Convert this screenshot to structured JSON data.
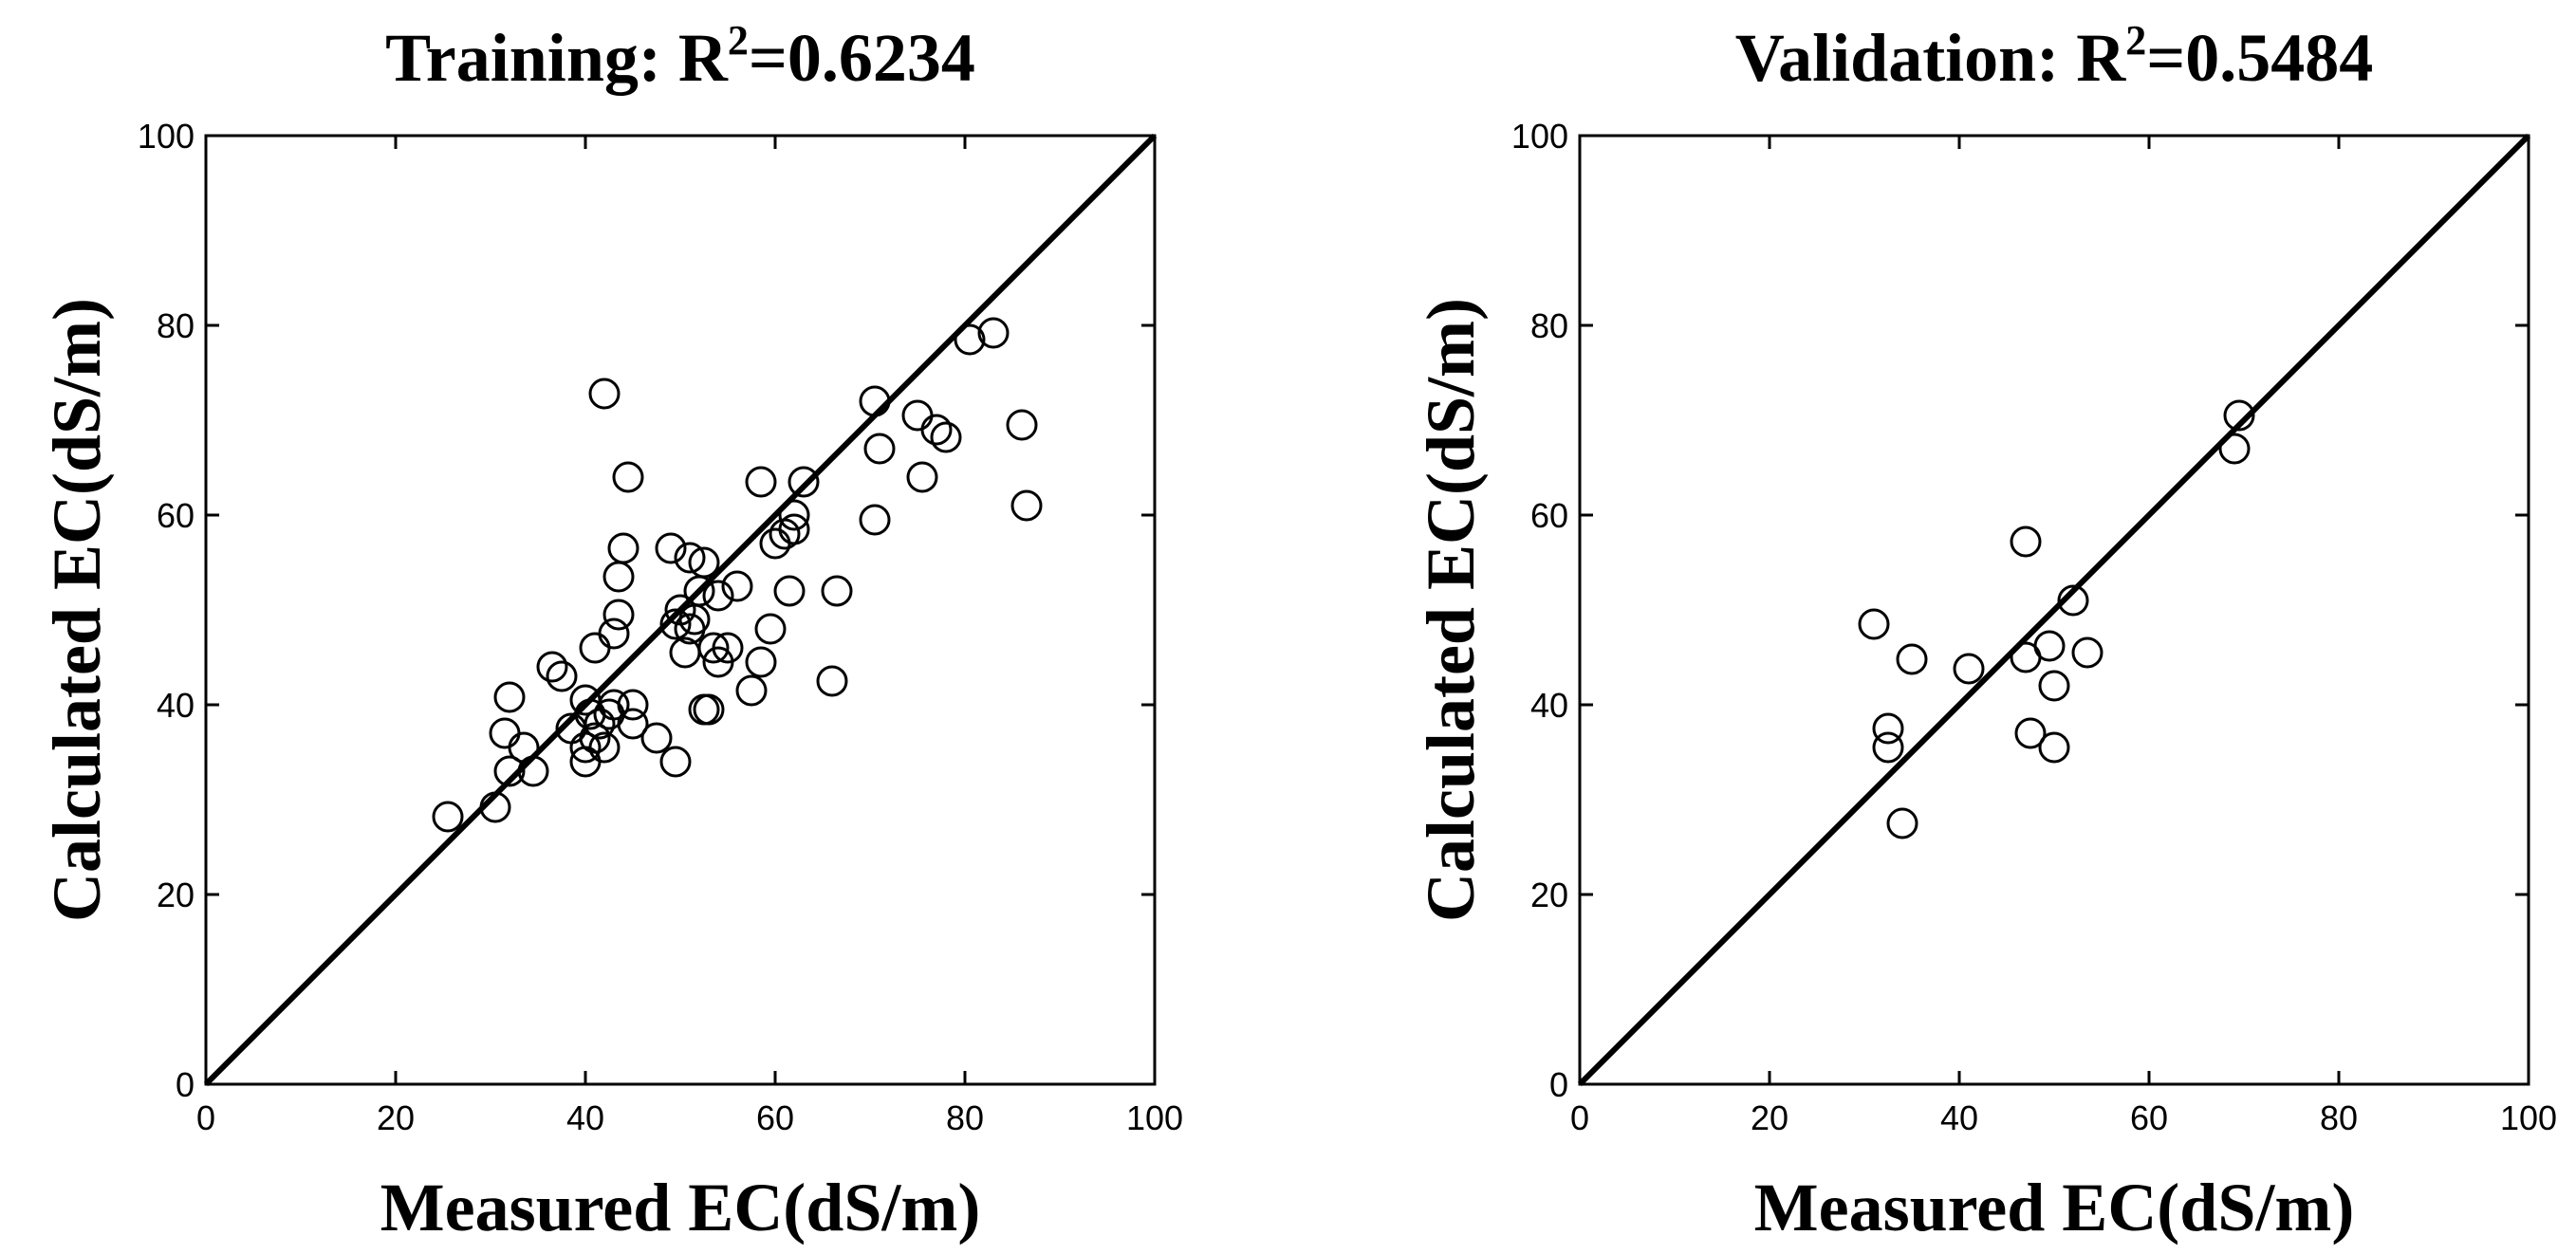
{
  "chart_data": [
    {
      "type": "scatter",
      "title_prefix": "Training: R",
      "title_sup": "2",
      "title_suffix": "=0.6234",
      "xlabel": "Measured EC(dS/m)",
      "ylabel": "Calculated EC(dS/m)",
      "xlim": [
        0,
        100
      ],
      "ylim": [
        0,
        100
      ],
      "xticks": [
        "0",
        "20",
        "40",
        "60",
        "80",
        "100"
      ],
      "yticks": [
        "0",
        "20",
        "40",
        "60",
        "80",
        "100"
      ],
      "reference_line": "1:1",
      "marker": "open-circle",
      "points": [
        [
          25.5,
          28.2
        ],
        [
          30.5,
          29.2
        ],
        [
          32,
          33
        ],
        [
          31.5,
          37
        ],
        [
          32,
          40.8
        ],
        [
          33.5,
          35.5
        ],
        [
          34.5,
          33
        ],
        [
          36.5,
          44
        ],
        [
          37.5,
          43
        ],
        [
          38.5,
          37.5
        ],
        [
          40,
          34
        ],
        [
          40,
          35.5
        ],
        [
          40,
          40.5
        ],
        [
          40.5,
          39
        ],
        [
          41,
          36.5
        ],
        [
          41,
          46
        ],
        [
          41.5,
          38
        ],
        [
          42,
          35.5
        ],
        [
          42,
          72.8
        ],
        [
          42.5,
          39
        ],
        [
          43,
          47.5
        ],
        [
          43,
          40
        ],
        [
          43.5,
          49.5
        ],
        [
          43.5,
          53.5
        ],
        [
          44,
          56.5
        ],
        [
          44.5,
          64
        ],
        [
          45,
          38
        ],
        [
          45,
          40
        ],
        [
          47.5,
          36.5
        ],
        [
          49,
          56.5
        ],
        [
          49.5,
          48.5
        ],
        [
          50,
          50
        ],
        [
          49.5,
          34
        ],
        [
          50.5,
          45.5
        ],
        [
          51,
          48
        ],
        [
          51,
          55.5
        ],
        [
          51.5,
          49
        ],
        [
          52,
          52
        ],
        [
          52.5,
          55
        ],
        [
          52.5,
          39.5
        ],
        [
          53,
          39.5
        ],
        [
          53.5,
          46
        ],
        [
          54,
          44.5
        ],
        [
          54,
          51.5
        ],
        [
          55,
          46
        ],
        [
          56,
          52.5
        ],
        [
          57.5,
          41.5
        ],
        [
          58.5,
          44.5
        ],
        [
          58.5,
          63.5
        ],
        [
          59.5,
          48
        ],
        [
          60,
          57
        ],
        [
          61,
          58
        ],
        [
          61.5,
          52
        ],
        [
          62,
          58.5
        ],
        [
          62,
          60
        ],
        [
          63,
          63.5
        ],
        [
          66,
          42.5
        ],
        [
          66.5,
          52
        ],
        [
          70.5,
          59.5
        ],
        [
          70.5,
          72
        ],
        [
          71,
          67
        ],
        [
          75,
          70.5
        ],
        [
          75.5,
          64
        ],
        [
          77,
          69
        ],
        [
          78,
          68.2
        ],
        [
          80.5,
          78.5
        ],
        [
          83,
          79.2
        ],
        [
          86,
          69.5
        ],
        [
          86.5,
          61
        ]
      ]
    },
    {
      "type": "scatter",
      "title_prefix": "Validation: R",
      "title_sup": "2",
      "title_suffix": "=0.5484",
      "xlabel": "Measured EC(dS/m)",
      "ylabel": "Calculated EC(dS/m)",
      "xlim": [
        0,
        100
      ],
      "ylim": [
        0,
        100
      ],
      "xticks": [
        "0",
        "20",
        "40",
        "60",
        "80",
        "100"
      ],
      "yticks": [
        "0",
        "20",
        "40",
        "60",
        "80",
        "100"
      ],
      "reference_line": "1:1",
      "marker": "open-circle",
      "points": [
        [
          31,
          48.5
        ],
        [
          32.5,
          37.5
        ],
        [
          32.5,
          35.5
        ],
        [
          34,
          27.5
        ],
        [
          35,
          44.8
        ],
        [
          41,
          43.8
        ],
        [
          47,
          57.2
        ],
        [
          47,
          45
        ],
        [
          47.5,
          37
        ],
        [
          49.5,
          46.2
        ],
        [
          50,
          42
        ],
        [
          50,
          35.5
        ],
        [
          52,
          51
        ],
        [
          53.5,
          45.5
        ],
        [
          69,
          67
        ],
        [
          69.5,
          70.5
        ]
      ]
    }
  ]
}
